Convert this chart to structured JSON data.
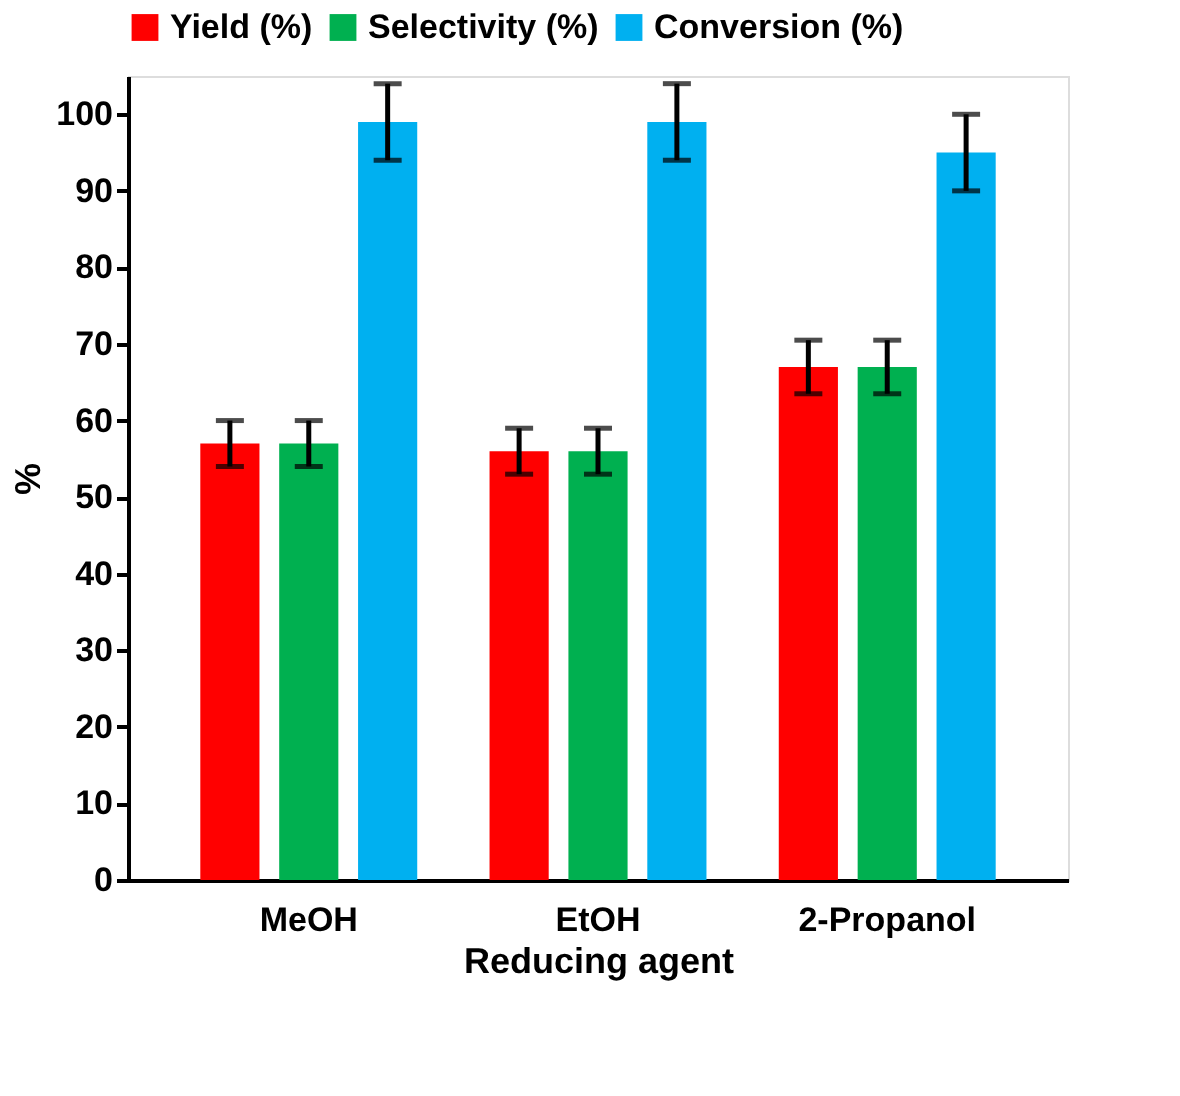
{
  "chart_data": {
    "type": "bar",
    "xlabel": "Reducing agent",
    "ylabel": "%",
    "categories": [
      "MeOH",
      "EtOH",
      "2-Propanol"
    ],
    "series": [
      {
        "name": "Yield (%)",
        "color": "#ff0000",
        "values": [
          57,
          56,
          67
        ],
        "errors": [
          3,
          3,
          3.5
        ]
      },
      {
        "name": "Selectivity (%)",
        "color": "#00b050",
        "values": [
          57,
          56,
          67
        ],
        "errors": [
          3,
          3,
          3.5
        ]
      },
      {
        "name": "Conversion (%)",
        "color": "#00b0f0",
        "values": [
          99,
          99,
          95
        ],
        "errors": [
          5,
          5,
          5
        ]
      }
    ],
    "ylim": [
      0,
      105
    ],
    "yticks": [
      0,
      10,
      20,
      30,
      40,
      50,
      60,
      70,
      80,
      90,
      100
    ],
    "grid": false,
    "legend": "top"
  }
}
